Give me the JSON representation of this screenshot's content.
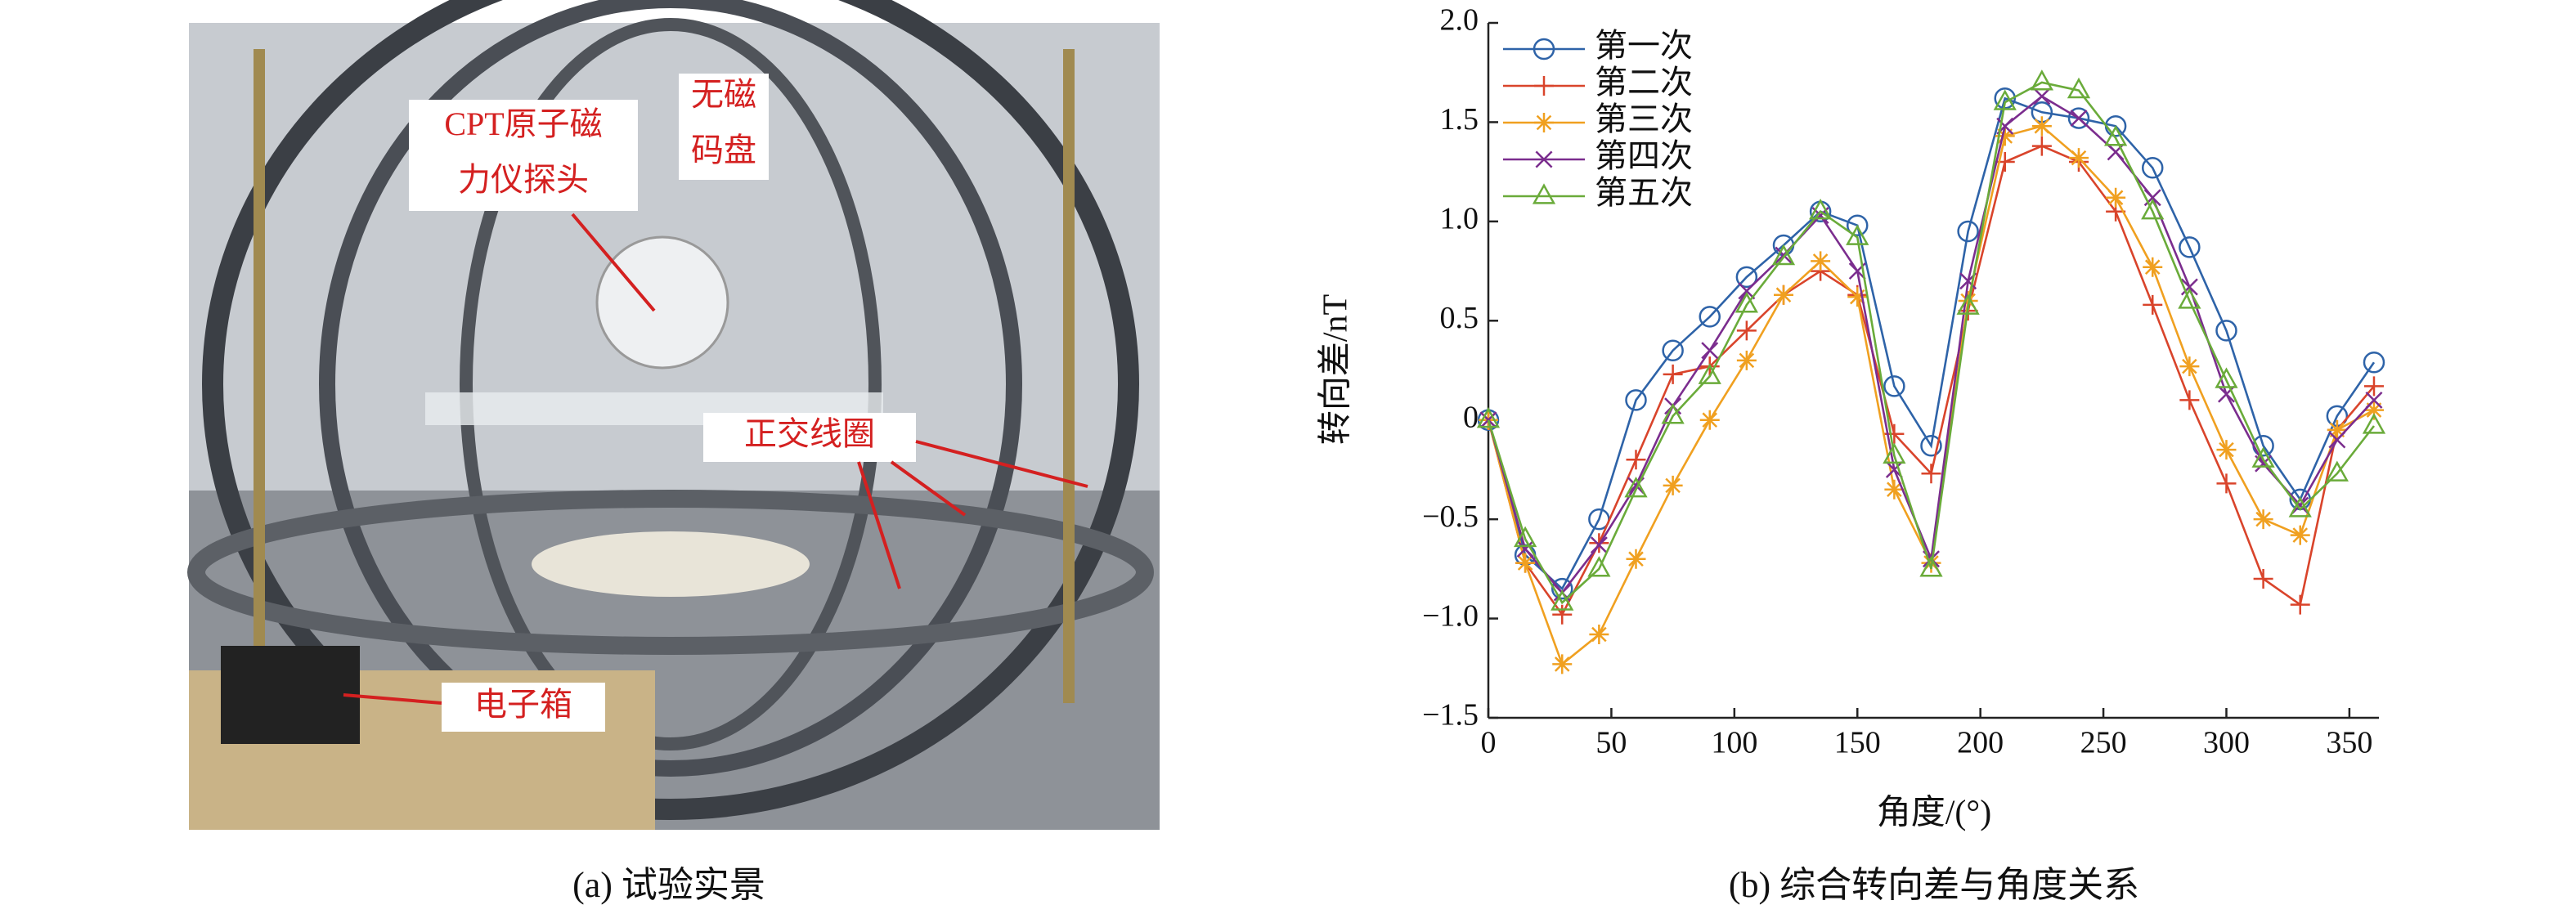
{
  "photo": {
    "labels": {
      "probe": [
        "CPT原子磁",
        "力仪探头"
      ],
      "disk": [
        "无磁",
        "码盘"
      ],
      "coil": "正交线圈",
      "box": "电子箱"
    },
    "caption": "(a) 试验实景"
  },
  "chart_data": {
    "type": "line",
    "caption": "(b) 综合转向差与角度关系",
    "x_label": "角度/(°)",
    "y_label": "转向差/nT",
    "x": [
      0,
      15,
      30,
      45,
      60,
      75,
      90,
      105,
      120,
      135,
      150,
      165,
      180,
      195,
      210,
      225,
      240,
      255,
      270,
      285,
      300,
      315,
      330,
      345,
      360
    ],
    "series": [
      {
        "name": "第一次",
        "color": "#2e63a8",
        "marker": "circle",
        "values": [
          0,
          -0.68,
          -0.85,
          -0.5,
          0.1,
          0.35,
          0.52,
          0.72,
          0.88,
          1.05,
          0.98,
          0.17,
          -0.13,
          0.95,
          1.62,
          1.55,
          1.52,
          1.48,
          1.27,
          0.87,
          0.45,
          -0.13,
          -0.4,
          0.02,
          0.29
        ]
      },
      {
        "name": "第二次",
        "color": "#d9442b",
        "marker": "plus",
        "values": [
          0,
          -0.72,
          -0.98,
          -0.62,
          -0.2,
          0.23,
          0.27,
          0.45,
          0.63,
          0.75,
          0.63,
          -0.07,
          -0.27,
          0.55,
          1.3,
          1.38,
          1.3,
          1.05,
          0.58,
          0.1,
          -0.32,
          -0.8,
          -0.93,
          -0.05,
          0.17
        ]
      },
      {
        "name": "第三次",
        "color": "#f0a020",
        "marker": "star",
        "values": [
          0,
          -0.72,
          -1.23,
          -1.08,
          -0.7,
          -0.33,
          0,
          0.3,
          0.63,
          0.8,
          0.62,
          -0.35,
          -0.72,
          0.6,
          1.43,
          1.48,
          1.32,
          1.12,
          0.77,
          0.27,
          -0.15,
          -0.5,
          -0.58,
          -0.05,
          0.05
        ]
      },
      {
        "name": "第四次",
        "color": "#7b2d8e",
        "marker": "x",
        "values": [
          0,
          -0.65,
          -0.87,
          -0.63,
          -0.33,
          0.07,
          0.35,
          0.65,
          0.83,
          1.03,
          0.75,
          -0.25,
          -0.7,
          0.7,
          1.48,
          1.63,
          1.52,
          1.35,
          1.12,
          0.67,
          0.13,
          -0.22,
          -0.43,
          -0.1,
          0.1
        ]
      },
      {
        "name": "第五次",
        "color": "#6aab3a",
        "marker": "triangle",
        "values": [
          0,
          -0.6,
          -0.92,
          -0.75,
          -0.35,
          0.02,
          0.22,
          0.58,
          0.82,
          1.05,
          0.92,
          -0.18,
          -0.75,
          0.57,
          1.6,
          1.7,
          1.66,
          1.42,
          1.05,
          0.6,
          0.2,
          -0.2,
          -0.45,
          -0.27,
          -0.03
        ]
      }
    ],
    "xlim": [
      0,
      362
    ],
    "xticks": [
      0,
      50,
      100,
      150,
      200,
      250,
      300,
      350
    ],
    "ylim": [
      -1.5,
      2.0
    ],
    "yticks": [
      {
        "value": -1.5,
        "label": "−1.5"
      },
      {
        "value": -1.0,
        "label": "−1.0"
      },
      {
        "value": -0.5,
        "label": "−0.5"
      },
      0,
      0.5,
      {
        "value": 1.0,
        "label": "1.0"
      },
      1.5,
      {
        "value": 2.0,
        "label": "2.0"
      }
    ],
    "legend": "upper-left"
  }
}
